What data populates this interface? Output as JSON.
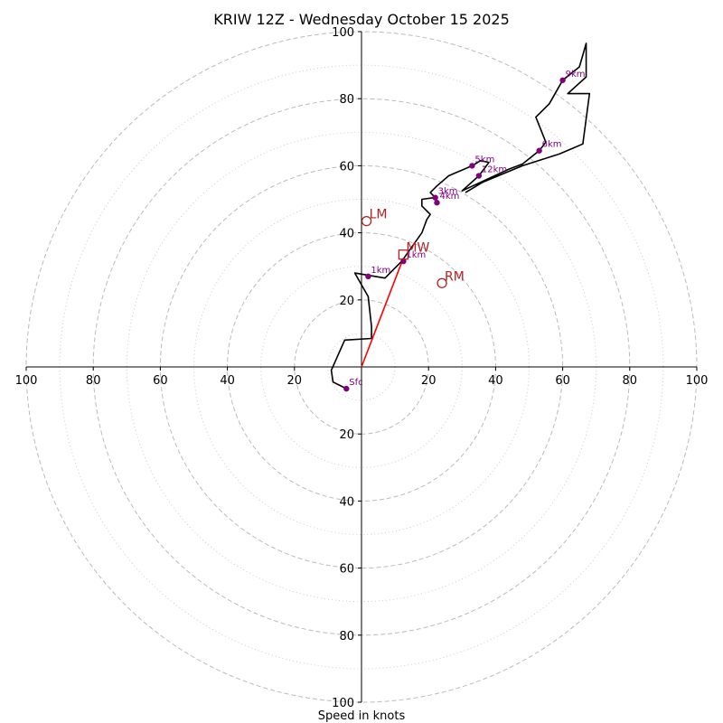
{
  "chart_data": {
    "type": "hodograph",
    "title": "KRIW 12Z - Wednesday October 15 2025",
    "xlabel": "Speed in knots",
    "range": [
      -100,
      100
    ],
    "major_rings": [
      20,
      40,
      60,
      80,
      100
    ],
    "minor_rings": [
      10,
      30,
      50,
      70,
      90
    ],
    "x_tick_labels": [
      "100",
      "80",
      "60",
      "40",
      "20",
      "20",
      "40",
      "60",
      "80",
      "100"
    ],
    "x_tick_values": [
      -100,
      -80,
      -60,
      -40,
      -20,
      20,
      40,
      60,
      80,
      100
    ],
    "y_tick_labels": [
      "100",
      "80",
      "60",
      "40",
      "20",
      "20",
      "40",
      "60",
      "80",
      "100"
    ],
    "y_tick_values": [
      100,
      80,
      60,
      40,
      20,
      -20,
      -40,
      -60,
      -80,
      -100
    ],
    "profile": [
      [
        -4.5,
        -6.5
      ],
      [
        -8.5,
        -4.5
      ],
      [
        -9,
        -1
      ],
      [
        -5,
        8
      ],
      [
        3,
        8.5
      ],
      [
        3,
        12
      ],
      [
        2,
        21
      ],
      [
        -2,
        28
      ],
      [
        7,
        26.5
      ],
      [
        12,
        31.5
      ],
      [
        18,
        40
      ],
      [
        19.5,
        44
      ],
      [
        20.5,
        45.5
      ],
      [
        18,
        48
      ],
      [
        18,
        50
      ],
      [
        22,
        50.5
      ],
      [
        20.5,
        52
      ],
      [
        22.5,
        54
      ],
      [
        26,
        57
      ],
      [
        33,
        60
      ],
      [
        35.5,
        61.5
      ],
      [
        38,
        61
      ],
      [
        35,
        57
      ],
      [
        30,
        52.5
      ],
      [
        44,
        59
      ],
      [
        48,
        60.5
      ],
      [
        53,
        64.5
      ],
      [
        55,
        67
      ],
      [
        52,
        74.5
      ],
      [
        56,
        78.5
      ],
      [
        60,
        85.5
      ],
      [
        65,
        89.5
      ],
      [
        67,
        96.5
      ],
      [
        67,
        86.5
      ],
      [
        61.5,
        81.5
      ],
      [
        68,
        81.5
      ],
      [
        66,
        66.5
      ],
      [
        59,
        63.5
      ],
      [
        48,
        60
      ],
      [
        36,
        55
      ],
      [
        31,
        52
      ]
    ],
    "points": [
      {
        "label": "Sfc",
        "u": -4.5,
        "v": -6.5
      },
      {
        "label": "1km",
        "u": 2,
        "v": 27
      },
      {
        "label": "1km",
        "u": 12.5,
        "v": 31.5
      },
      {
        "label": "3km",
        "u": 22,
        "v": 50.5
      },
      {
        "label": "4km",
        "u": 22.5,
        "v": 49
      },
      {
        "label": "5km",
        "u": 33,
        "v": 60
      },
      {
        "label": "12km",
        "u": 35,
        "v": 57
      },
      {
        "label": "6km",
        "u": 53,
        "v": 64.5
      },
      {
        "label": "9km",
        "u": 60,
        "v": 85.5
      }
    ],
    "storm_motion_vector": {
      "from": [
        0,
        0
      ],
      "to": [
        12.5,
        32.5
      ]
    },
    "storm_markers": [
      {
        "label": "LM",
        "u": 1.5,
        "v": 43.5,
        "marker": "circle"
      },
      {
        "label": "MW",
        "u": 12.5,
        "v": 33.5,
        "marker": "square"
      },
      {
        "label": "RM",
        "u": 24,
        "v": 25,
        "marker": "circle"
      }
    ],
    "colors": {
      "profile": "#000000",
      "points": "#800080",
      "storm": "#b22222",
      "vector": "#ff0000",
      "grid": "#bbbbbb"
    }
  }
}
